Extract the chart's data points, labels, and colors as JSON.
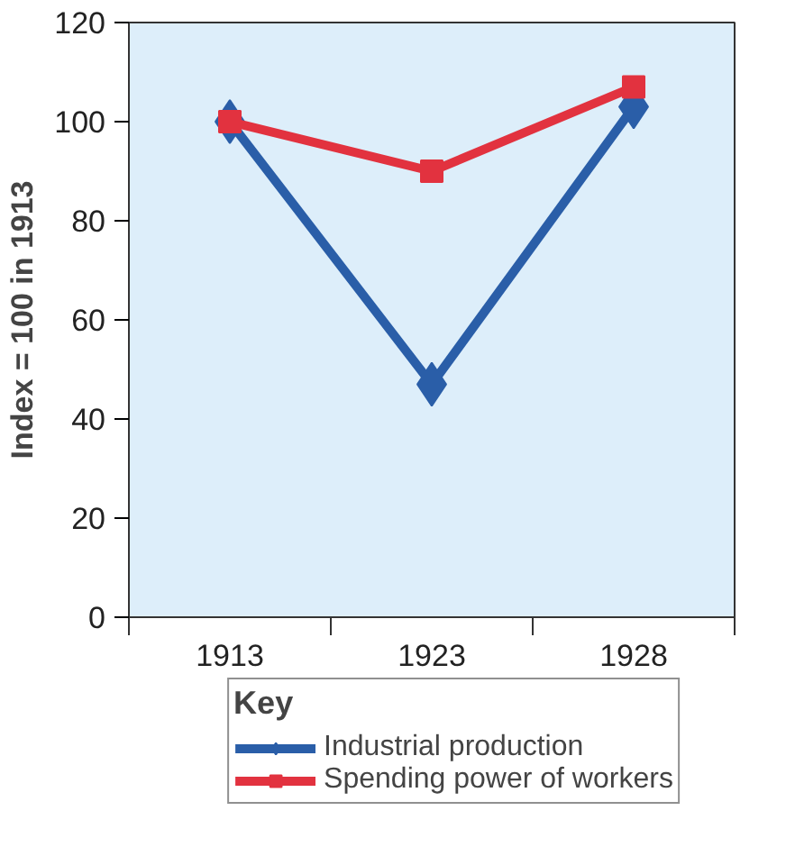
{
  "chart_data": {
    "type": "line",
    "ylabel": "Index = 100 in 1913",
    "legend_title": "Key",
    "categories": [
      "1913",
      "1923",
      "1928"
    ],
    "series": [
      {
        "name": "Industrial production",
        "color": "#2a5ea8",
        "values": [
          100,
          47,
          103
        ],
        "marker": "diamond"
      },
      {
        "name": "Spending power of workers",
        "color": "#e2323f",
        "values": [
          100,
          90,
          107
        ],
        "marker": "square"
      }
    ],
    "ylim": [
      0,
      120
    ],
    "yticks": [
      0,
      20,
      40,
      60,
      80,
      100,
      120
    ],
    "grid": false,
    "legend": "bottom",
    "line_style": "solid"
  }
}
